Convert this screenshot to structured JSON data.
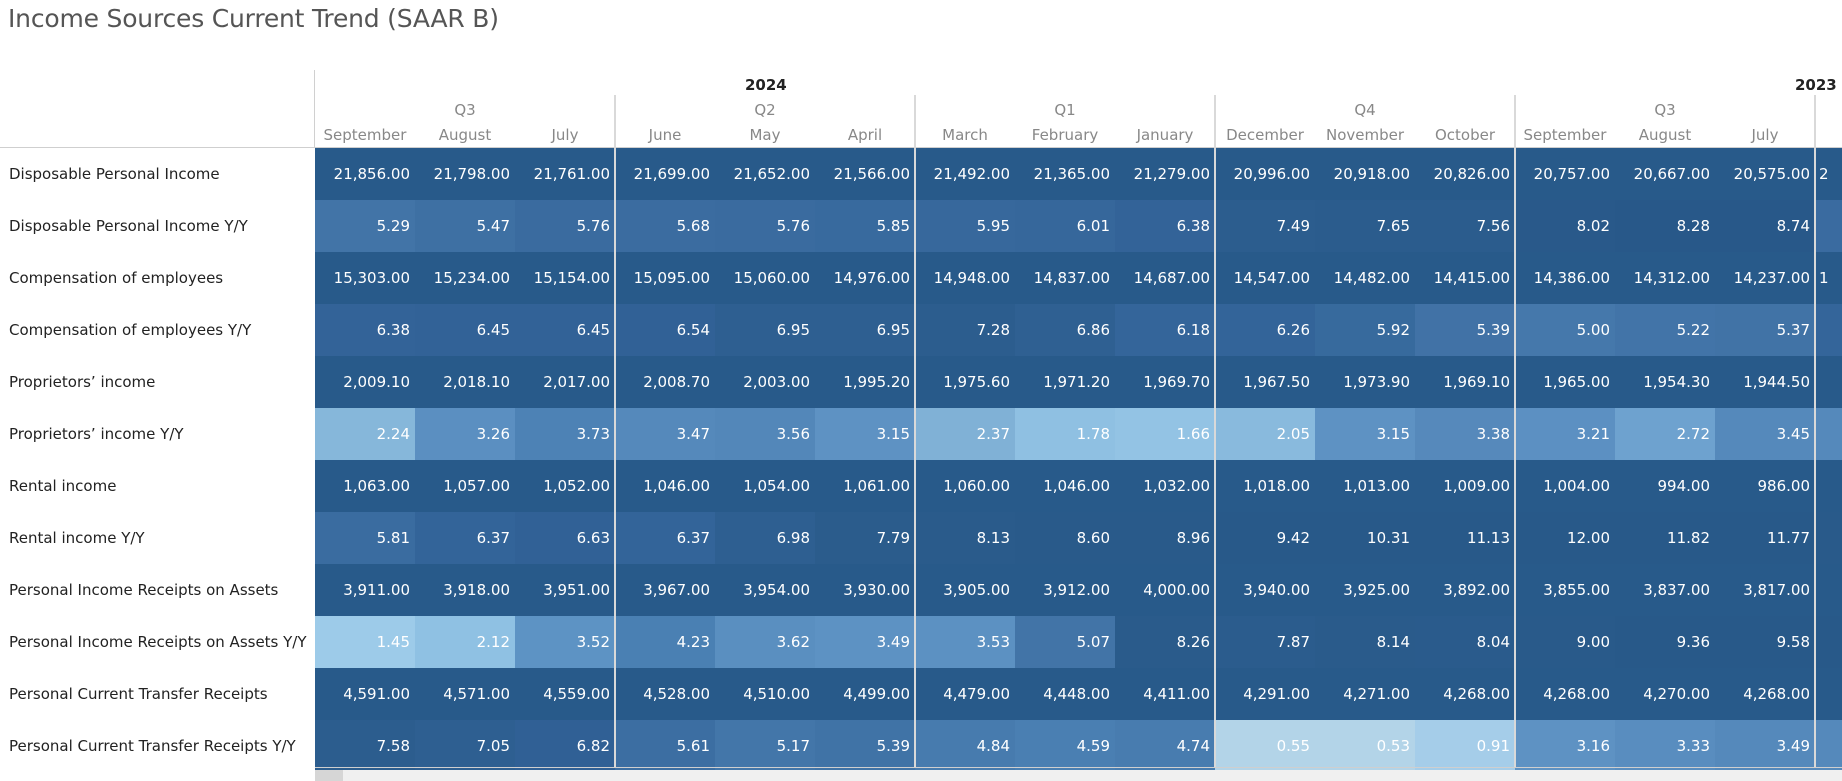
{
  "title": "Income Sources Current Trend (SAAR B)",
  "years": [
    "2024",
    "2023"
  ],
  "quarters": [
    "Q3",
    "Q2",
    "Q1",
    "Q4",
    "Q3"
  ],
  "months": [
    "September",
    "August",
    "July",
    "June",
    "May",
    "April",
    "March",
    "February",
    "January",
    "December",
    "November",
    "October",
    "September",
    "August",
    "July"
  ],
  "rows": [
    {
      "label": "Disposable Personal Income",
      "values": [
        "21,856.00",
        "21,798.00",
        "21,761.00",
        "21,699.00",
        "21,652.00",
        "21,566.00",
        "21,492.00",
        "21,365.00",
        "21,279.00",
        "20,996.00",
        "20,918.00",
        "20,826.00",
        "20,757.00",
        "20,667.00",
        "20,575.00"
      ],
      "colors": [
        "#285a8a",
        "#285a8a",
        "#285a8a",
        "#285a8a",
        "#285a8a",
        "#285a8a",
        "#285a8a",
        "#285a8a",
        "#285a8a",
        "#285a8a",
        "#285a8a",
        "#285a8a",
        "#285a8a",
        "#285a8a",
        "#285a8a"
      ]
    },
    {
      "label": "Disposable Personal Income Y/Y",
      "values": [
        "5.29",
        "5.47",
        "5.76",
        "5.68",
        "5.76",
        "5.85",
        "5.95",
        "6.01",
        "6.38",
        "7.49",
        "7.65",
        "7.56",
        "8.02",
        "8.28",
        "8.74"
      ],
      "colors": [
        "#4274a7",
        "#3e70a3",
        "#3a6b9f",
        "#3b6ca0",
        "#3a6b9f",
        "#386a9e",
        "#37689c",
        "#36679b",
        "#336398",
        "#2c5d8e",
        "#2b5c8d",
        "#2b5c8d",
        "#29598a",
        "#285889",
        "#285889"
      ]
    },
    {
      "label": "Compensation of employees",
      "values": [
        "15,303.00",
        "15,234.00",
        "15,154.00",
        "15,095.00",
        "15,060.00",
        "14,976.00",
        "14,948.00",
        "14,837.00",
        "14,687.00",
        "14,547.00",
        "14,482.00",
        "14,415.00",
        "14,386.00",
        "14,312.00",
        "14,237.00"
      ],
      "colors": [
        "#285a8a",
        "#285a8a",
        "#285a8a",
        "#285a8a",
        "#285a8a",
        "#285a8a",
        "#285a8a",
        "#285a8a",
        "#285a8a",
        "#285a8a",
        "#285a8a",
        "#285a8a",
        "#285a8a",
        "#285a8a",
        "#285a8a"
      ]
    },
    {
      "label": "Compensation of employees Y/Y",
      "values": [
        "6.38",
        "6.45",
        "6.45",
        "6.54",
        "6.95",
        "6.95",
        "7.28",
        "6.86",
        "6.18",
        "6.26",
        "5.92",
        "5.39",
        "5.00",
        "5.22",
        "5.37"
      ],
      "colors": [
        "#336398",
        "#326297",
        "#326297",
        "#316196",
        "#2e5f91",
        "#2e5f91",
        "#2c5d8e",
        "#2f6092",
        "#34659a",
        "#336499",
        "#376a9d",
        "#4172a6",
        "#4578ab",
        "#4274a8",
        "#4173a6"
      ]
    },
    {
      "label": "Proprietors’ income",
      "values": [
        "2,009.10",
        "2,018.10",
        "2,017.00",
        "2,008.70",
        "2,003.00",
        "1,995.20",
        "1,975.60",
        "1,971.20",
        "1,969.70",
        "1,967.50",
        "1,973.90",
        "1,969.10",
        "1,965.00",
        "1,954.30",
        "1,944.50"
      ],
      "colors": [
        "#285a8a",
        "#285a8a",
        "#285a8a",
        "#285a8a",
        "#285a8a",
        "#285a8a",
        "#285a8a",
        "#285a8a",
        "#285a8a",
        "#285a8a",
        "#285a8a",
        "#285a8a",
        "#285a8a",
        "#285a8a",
        "#285a8a"
      ]
    },
    {
      "label": "Proprietors’ income Y/Y",
      "values": [
        "2.24",
        "3.26",
        "3.73",
        "3.47",
        "3.56",
        "3.15",
        "2.37",
        "1.78",
        "1.66",
        "2.05",
        "3.15",
        "3.38",
        "3.21",
        "2.72",
        "3.45"
      ],
      "colors": [
        "#86b7da",
        "#5b8fc1",
        "#4d82b5",
        "#5589bb",
        "#5387b9",
        "#5e92c3",
        "#80b1d6",
        "#8fc0e2",
        "#93c3e4",
        "#89badd",
        "#5e92c3",
        "#5689bb",
        "#5c90c2",
        "#6ea2cf",
        "#5589bb"
      ]
    },
    {
      "label": "Rental income",
      "values": [
        "1,063.00",
        "1,057.00",
        "1,052.00",
        "1,046.00",
        "1,054.00",
        "1,061.00",
        "1,060.00",
        "1,046.00",
        "1,032.00",
        "1,018.00",
        "1,013.00",
        "1,009.00",
        "1,004.00",
        "994.00",
        "986.00"
      ],
      "colors": [
        "#285a8a",
        "#285a8a",
        "#285a8a",
        "#285a8a",
        "#285a8a",
        "#285a8a",
        "#285a8a",
        "#285a8a",
        "#285a8a",
        "#285a8a",
        "#285a8a",
        "#285a8a",
        "#285a8a",
        "#285a8a",
        "#285a8a"
      ]
    },
    {
      "label": "Rental income Y/Y",
      "values": [
        "5.81",
        "6.37",
        "6.63",
        "6.37",
        "6.98",
        "7.79",
        "8.13",
        "8.60",
        "8.96",
        "9.42",
        "10.31",
        "11.13",
        "12.00",
        "11.82",
        "11.77"
      ],
      "colors": [
        "#3a6ca0",
        "#336499",
        "#316196",
        "#336499",
        "#2e5f91",
        "#2b5c8c",
        "#2a5b8b",
        "#295a8a",
        "#295a8a",
        "#285989",
        "#285989",
        "#285989",
        "#285989",
        "#285989",
        "#285989"
      ]
    },
    {
      "label": "Personal Income Receipts on Assets",
      "values": [
        "3,911.00",
        "3,918.00",
        "3,951.00",
        "3,967.00",
        "3,954.00",
        "3,930.00",
        "3,905.00",
        "3,912.00",
        "4,000.00",
        "3,940.00",
        "3,925.00",
        "3,892.00",
        "3,855.00",
        "3,837.00",
        "3,817.00"
      ],
      "colors": [
        "#285a8a",
        "#285a8a",
        "#285a8a",
        "#285a8a",
        "#285a8a",
        "#285a8a",
        "#285a8a",
        "#285a8a",
        "#285a8a",
        "#285a8a",
        "#285a8a",
        "#285a8a",
        "#285a8a",
        "#285a8a",
        "#285a8a"
      ]
    },
    {
      "label": "Personal Income Receipts on Assets Y/Y",
      "values": [
        "1.45",
        "2.12",
        "3.52",
        "4.23",
        "3.62",
        "3.49",
        "3.53",
        "5.07",
        "8.26",
        "7.87",
        "8.14",
        "8.04",
        "9.00",
        "9.36",
        "9.58"
      ],
      "colors": [
        "#9dcbe9",
        "#8fc1e3",
        "#5d93c4",
        "#4a80b3",
        "#5a8fc0",
        "#5d92c3",
        "#5c91c2",
        "#4274a7",
        "#2a5b8b",
        "#2b5c8d",
        "#2a5b8b",
        "#2a5b8c",
        "#295a8a",
        "#285989",
        "#285989"
      ]
    },
    {
      "label": "Personal Current Transfer Receipts",
      "values": [
        "4,591.00",
        "4,571.00",
        "4,559.00",
        "4,528.00",
        "4,510.00",
        "4,499.00",
        "4,479.00",
        "4,448.00",
        "4,411.00",
        "4,291.00",
        "4,271.00",
        "4,268.00",
        "4,268.00",
        "4,270.00",
        "4,268.00"
      ],
      "colors": [
        "#285a8a",
        "#285a8a",
        "#285a8a",
        "#285a8a",
        "#285a8a",
        "#285a8a",
        "#285a8a",
        "#285a8a",
        "#285a8a",
        "#285a8a",
        "#285a8a",
        "#285a8a",
        "#285a8a",
        "#285a8a",
        "#285a8a"
      ]
    },
    {
      "label": "Personal Current Transfer Receipts Y/Y",
      "values": [
        "7.58",
        "7.05",
        "6.82",
        "5.61",
        "5.17",
        "5.39",
        "4.84",
        "4.59",
        "4.74",
        "0.55",
        "0.53",
        "0.91",
        "3.16",
        "3.33",
        "3.49"
      ],
      "colors": [
        "#2c5d8e",
        "#2e5f91",
        "#306095",
        "#3c6ea2",
        "#4376a9",
        "#4073a6",
        "#477bae",
        "#4a7fb2",
        "#487caf",
        "#b3d4e8",
        "#b3d4e8",
        "#a5cde9",
        "#5e92c3",
        "#598dbf",
        "#5589bb"
      ]
    }
  ],
  "next_column": {
    "values": [
      "2",
      "",
      "1",
      "",
      "",
      "",
      "",
      "",
      "",
      "",
      "",
      ""
    ],
    "colors": [
      "#285a8a",
      "#3a6ba0",
      "#285a8a",
      "#34659a",
      "#285a8a",
      "#5589bb",
      "#285a8a",
      "#295a8a",
      "#285a8a",
      "#285989",
      "#285a8a",
      "#5589bb"
    ]
  }
}
